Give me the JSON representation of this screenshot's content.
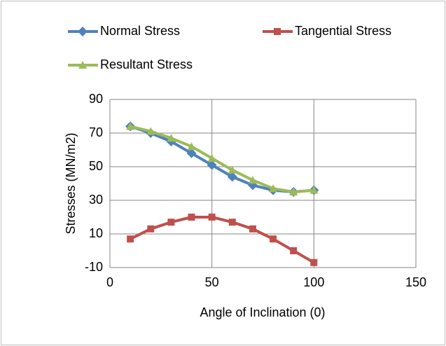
{
  "chart_data": {
    "type": "line",
    "xlabel": "Angle of Inclination (0)",
    "ylabel": "Stresses (MN/m2)",
    "x": [
      10,
      20,
      30,
      40,
      50,
      60,
      70,
      80,
      90,
      100
    ],
    "series": [
      {
        "name": "Normal Stress",
        "color": "#4f81bd",
        "marker": "diamond",
        "values": [
          74,
          70,
          65,
          58,
          51,
          44,
          39,
          36,
          35,
          36
        ]
      },
      {
        "name": "Tangential Stress",
        "color": "#c0504d",
        "marker": "square",
        "values": [
          7,
          13,
          17,
          20,
          20,
          17,
          13,
          7,
          0,
          -7
        ]
      },
      {
        "name": "Resultant Stress",
        "color": "#9bbb59",
        "marker": "triangle",
        "values": [
          74,
          71,
          67,
          62,
          55,
          48,
          42,
          37,
          35,
          36
        ]
      }
    ],
    "xlim": [
      0,
      150
    ],
    "xticks": [
      0,
      50,
      100,
      150
    ],
    "ylim": [
      -10,
      90
    ],
    "yticks": [
      -10,
      10,
      30,
      50,
      70,
      90
    ],
    "grid": true,
    "legend": "top"
  }
}
